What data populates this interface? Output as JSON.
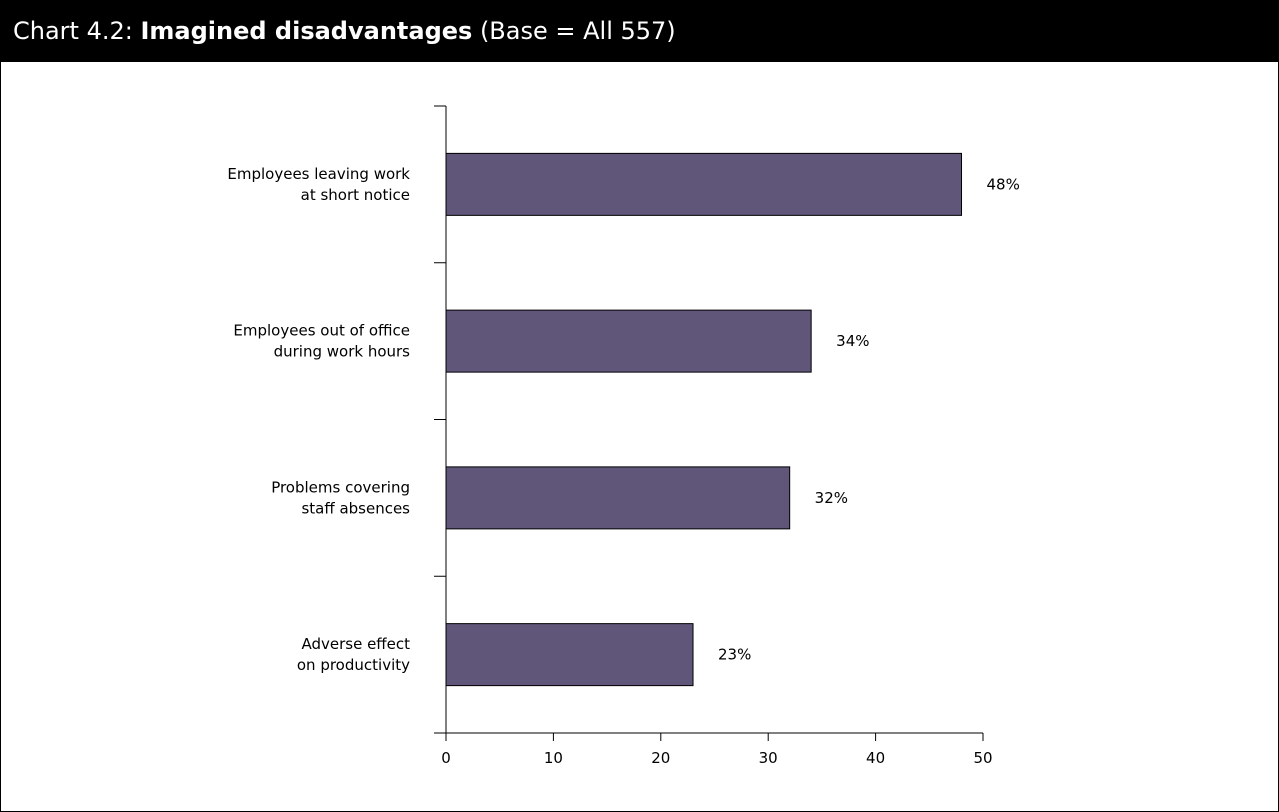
{
  "header": {
    "prefix": "Chart 4.2: ",
    "bold": "Imagined disadvantages",
    "suffix": " (Base = All 557)"
  },
  "colors": {
    "bar_fill": "#5f567a",
    "bar_stroke": "#000000",
    "title_bg": "#000000",
    "title_text": "#ffffff"
  },
  "chart_data": {
    "type": "bar",
    "orientation": "horizontal",
    "title": "Chart 4.2: Imagined disadvantages (Base = All 557)",
    "categories": [
      [
        "Employees leaving work",
        "at short notice"
      ],
      [
        "Employees out of office",
        "during work hours"
      ],
      [
        "Problems covering",
        "staff absences"
      ],
      [
        "Adverse effect",
        "on productivity"
      ]
    ],
    "values": [
      48,
      34,
      32,
      23
    ],
    "value_labels": [
      "48%",
      "34%",
      "32%",
      "23%"
    ],
    "xlim": [
      0,
      50
    ],
    "xticks": [
      0,
      10,
      20,
      30,
      40,
      50
    ],
    "grid": false,
    "legend": "none"
  }
}
